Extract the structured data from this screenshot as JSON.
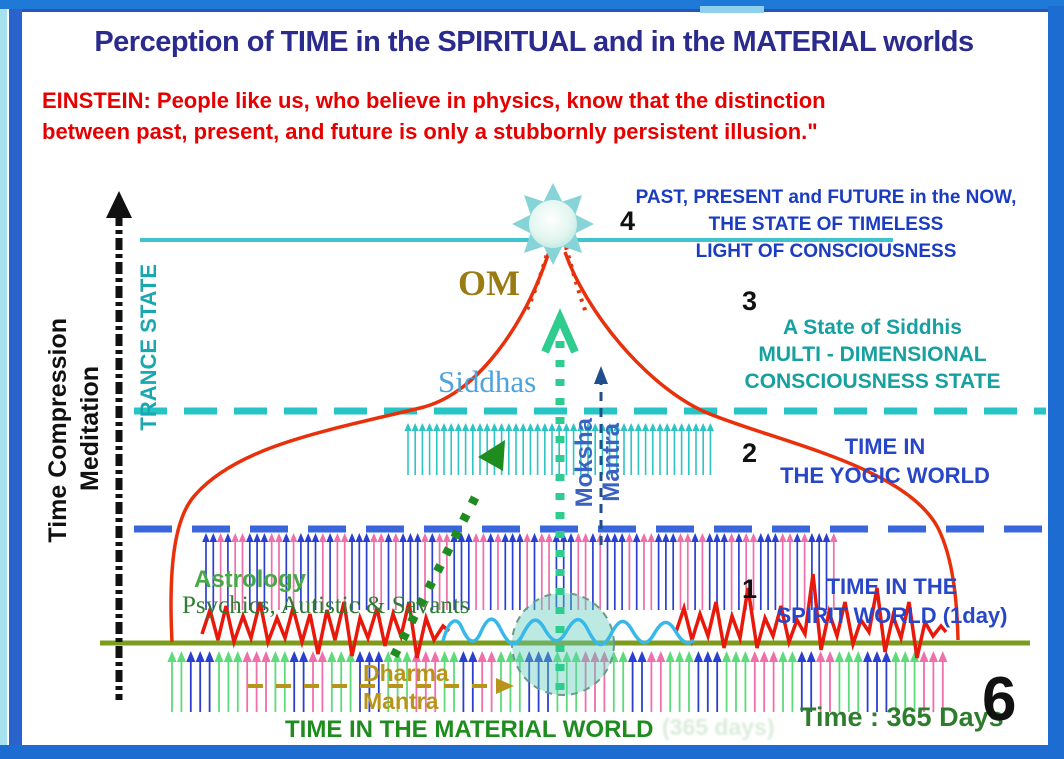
{
  "title": "Perception of TIME in the SPIRITUAL and in the MATERIAL worlds",
  "quote": {
    "line1": "EINSTEIN:  People like us, who believe in physics, know that the distinction",
    "line2": "between past, present, and future is only a stubbornly persistent illusion.\""
  },
  "levels": {
    "timeless": {
      "marker": "4",
      "line1": "PAST, PRESENT and FUTURE in the NOW,",
      "line2": "THE STATE OF TIMELESS",
      "line3": "LIGHT OF CONSCIOUSNESS"
    },
    "siddhis": {
      "marker": "3",
      "line1": "A State of Siddhis",
      "line2": "MULTI - DIMENSIONAL",
      "line3": "CONSCIOUSNESS STATE"
    },
    "yogic": {
      "marker": "2",
      "line1": "TIME IN",
      "line2": "THE YOGIC WORLD"
    },
    "spirit": {
      "marker": "1",
      "line1": "TIME IN THE",
      "line2": "SPIRIT WORLD (1day)"
    },
    "material": {
      "marker": "6",
      "label": "TIME IN THE MATERIAL WORLD",
      "time_value": "Time : 365 Days",
      "erased_text": "(365 days)"
    }
  },
  "left_axis": {
    "line1": "Time Compression",
    "line2": "Meditation",
    "trance_label": "TRANCE STATE"
  },
  "center_labels": {
    "om": "OM",
    "siddhas": "Siddhas",
    "moksha": "Moksha",
    "moksha2": "Mantra",
    "dharma": "Dharma",
    "dharma2": "Mantra"
  },
  "annotations": {
    "astrology": "Astrology",
    "psychics": "Psychics, Autistic & Savants"
  },
  "colors": {
    "title_navy": "#2b2b8e",
    "quote_red": "#e60000",
    "curve_red": "#e8300a",
    "level_teal": "#26c4c4",
    "level_blue": "#3a66dd",
    "material_green_line": "#7d9c1e",
    "label_blue": "#2846c8",
    "teal_text": "#16a0a0",
    "green_text": "#1f8c1f",
    "gold_text": "#b8941a",
    "om_gold": "#9a7a12",
    "siddhas_blue": "#4da3dd",
    "frame_blue": "#1d6cd2"
  }
}
